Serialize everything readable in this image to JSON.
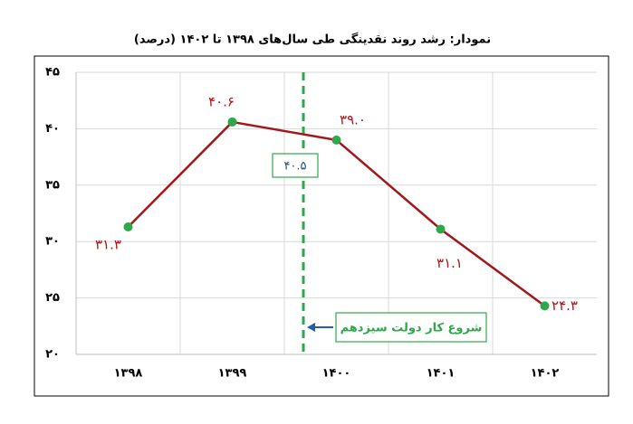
{
  "chart_data": {
    "type": "line",
    "title": "نمودار: رشد روند نقدینگی طی سال‌های ۱۳۹۸ تا ۱۴۰۲ (درصد)",
    "categories": [
      "۱۳۹۸",
      "۱۳۹۹",
      "۱۴۰۰",
      "۱۴۰۱",
      "۱۴۰۲"
    ],
    "values": [
      31.3,
      40.6,
      39.0,
      31.1,
      24.3
    ],
    "value_labels": [
      "۳۱.۳",
      "۴۰.۶",
      "۳۹.۰",
      "۳۱.۱",
      "۲۴.۳"
    ],
    "color": "#a3171b",
    "marker_color": "#2ea84a",
    "ylim": [
      20,
      45
    ],
    "yticks": [
      {
        "value": 20,
        "label": "۲۰"
      },
      {
        "value": 25,
        "label": "۲۵"
      },
      {
        "value": 30,
        "label": "۳۰"
      },
      {
        "value": 35,
        "label": "۳۵"
      },
      {
        "value": 40,
        "label": "۴۰"
      },
      {
        "value": 45,
        "label": "۴۵"
      }
    ],
    "grid": true,
    "annotations": [
      "۴۰.۵",
      "شروع کار دولت سیزدهم"
    ]
  }
}
